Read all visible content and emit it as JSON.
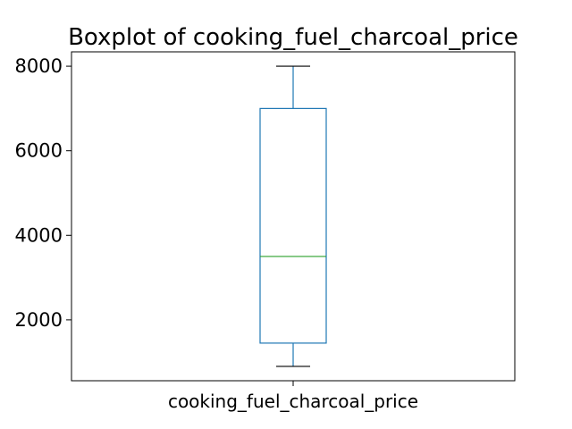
{
  "chart_data": {
    "type": "boxplot",
    "title": "Boxplot of cooking_fuel_charcoal_price",
    "categories": [
      "cooking_fuel_charcoal_price"
    ],
    "xlabel": "",
    "ylabel": "",
    "ylim": [
      560,
      8340
    ],
    "yticks": [
      2000,
      4000,
      6000,
      8000
    ],
    "ytick_labels": [
      "2000",
      "4000",
      "6000",
      "8000"
    ],
    "grid": false,
    "box": {
      "whisker_low": 900,
      "q1": 1450,
      "median": 3500,
      "q3": 7000,
      "whisker_high": 8000
    },
    "colors": {
      "box": "#1f77b4",
      "median": "#2ca02c",
      "cap": "#000000"
    }
  }
}
